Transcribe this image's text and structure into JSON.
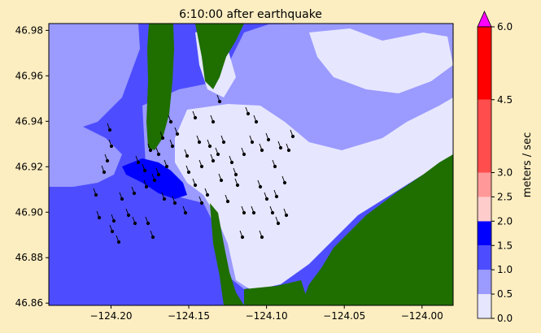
{
  "chart_data": {
    "type": "heatmap",
    "title": "6:10:00 after earthquake",
    "xlabel": "",
    "ylabel": "",
    "xlim": [
      -124.24,
      -123.98
    ],
    "ylim": [
      46.859,
      46.983
    ],
    "x_ticks": [
      {
        "value": -124.2,
        "label": "−124.20"
      },
      {
        "value": -124.15,
        "label": "−124.15"
      },
      {
        "value": -124.1,
        "label": "−124.10"
      },
      {
        "value": -124.05,
        "label": "−124.05"
      },
      {
        "value": -124.0,
        "label": "−124.00"
      }
    ],
    "y_ticks": [
      {
        "value": 46.86,
        "label": "46.86"
      },
      {
        "value": 46.88,
        "label": "46.88"
      },
      {
        "value": 46.9,
        "label": "46.90"
      },
      {
        "value": 46.92,
        "label": "46.92"
      },
      {
        "value": 46.94,
        "label": "46.94"
      },
      {
        "value": 46.96,
        "label": "46.96"
      },
      {
        "value": 46.98,
        "label": "46.98"
      }
    ],
    "colorbar": {
      "label": "meters / sec",
      "range": [
        0,
        6
      ],
      "bounds": [
        0,
        0.5,
        1.0,
        1.5,
        2.0,
        2.5,
        3.0,
        4.5,
        6.0
      ],
      "tick_labels": [
        "0.0",
        "0.5",
        "1.0",
        "1.5",
        "2.0",
        "2.5",
        "3.0",
        "4.5",
        "6.0"
      ],
      "colors": [
        "#e6e6ff",
        "#9a9aff",
        "#4d4dff",
        "#0000ff",
        "#ffcccc",
        "#ff9999",
        "#ff4d4d",
        "#ff0000"
      ],
      "extend_color": "#ff00ff",
      "extend": "max"
    },
    "land_color": "#1e6e00",
    "arrow_color": "#000000"
  }
}
